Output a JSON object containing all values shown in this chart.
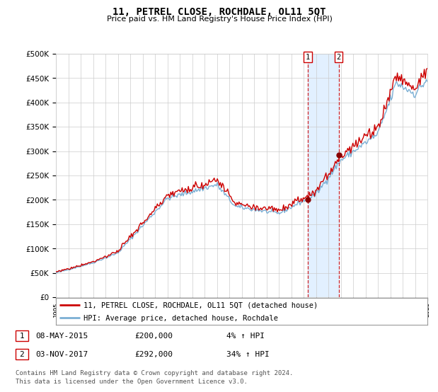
{
  "title": "11, PETREL CLOSE, ROCHDALE, OL11 5QT",
  "subtitle": "Price paid vs. HM Land Registry's House Price Index (HPI)",
  "legend1": "11, PETREL CLOSE, ROCHDALE, OL11 5QT (detached house)",
  "legend2": "HPI: Average price, detached house, Rochdale",
  "transaction1_label": "1",
  "transaction1_date": "08-MAY-2015",
  "transaction1_price": 200000,
  "transaction1_hpi_pct": "4%",
  "transaction2_label": "2",
  "transaction2_date": "03-NOV-2017",
  "transaction2_price": 292000,
  "transaction2_hpi_pct": "34%",
  "footnote1": "Contains HM Land Registry data © Crown copyright and database right 2024.",
  "footnote2": "This data is licensed under the Open Government Licence v3.0.",
  "hpi_color": "#7bafd4",
  "price_color": "#cc0000",
  "marker_color": "#880000",
  "vline_color": "#cc0000",
  "shade_color": "#ddeeff",
  "box_color": "#cc0000",
  "grid_color": "#cccccc",
  "bg_color": "#ffffff",
  "ylim": [
    0,
    500000
  ],
  "yticks": [
    0,
    50000,
    100000,
    150000,
    200000,
    250000,
    300000,
    350000,
    400000,
    450000,
    500000
  ],
  "start_year": 1995,
  "end_year": 2025,
  "trans1_year": 2015.35,
  "trans2_year": 2017.84
}
